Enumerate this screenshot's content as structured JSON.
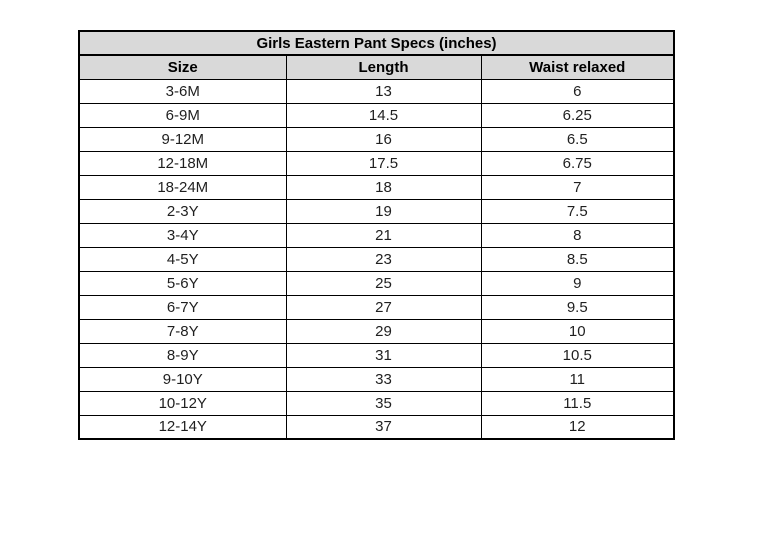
{
  "table": {
    "title": "Girls Eastern Pant Specs (inches)",
    "columns": [
      "Size",
      "Length",
      "Waist relaxed"
    ],
    "rows": [
      [
        "3-6M",
        "13",
        "6"
      ],
      [
        "6-9M",
        "14.5",
        "6.25"
      ],
      [
        "9-12M",
        "16",
        "6.5"
      ],
      [
        "12-18M",
        "17.5",
        "6.75"
      ],
      [
        "18-24M",
        "18",
        "7"
      ],
      [
        "2-3Y",
        "19",
        "7.5"
      ],
      [
        "3-4Y",
        "21",
        "8"
      ],
      [
        "4-5Y",
        "23",
        "8.5"
      ],
      [
        "5-6Y",
        "25",
        "9"
      ],
      [
        "6-7Y",
        "27",
        "9.5"
      ],
      [
        "7-8Y",
        "29",
        "10"
      ],
      [
        "8-9Y",
        "31",
        "10.5"
      ],
      [
        "9-10Y",
        "33",
        "11"
      ],
      [
        "10-12Y",
        "35",
        "11.5"
      ],
      [
        "12-14Y",
        "37",
        "12"
      ]
    ],
    "colors": {
      "header_bg": "#d9d9d9",
      "border": "#000000",
      "text": "#1f1f1f",
      "page_bg": "#ffffff"
    }
  },
  "chart_data": {
    "type": "table",
    "title": "Girls Eastern Pant Specs (inches)",
    "columns": [
      "Size",
      "Length",
      "Waist relaxed"
    ],
    "categories": [
      "3-6M",
      "6-9M",
      "9-12M",
      "12-18M",
      "18-24M",
      "2-3Y",
      "3-4Y",
      "4-5Y",
      "5-6Y",
      "6-7Y",
      "7-8Y",
      "8-9Y",
      "9-10Y",
      "10-12Y",
      "12-14Y"
    ],
    "series": [
      {
        "name": "Length",
        "values": [
          13,
          14.5,
          16,
          17.5,
          18,
          19,
          21,
          23,
          25,
          27,
          29,
          31,
          33,
          35,
          37
        ]
      },
      {
        "name": "Waist relaxed",
        "values": [
          6,
          6.25,
          6.5,
          6.75,
          7,
          7.5,
          8,
          8.5,
          9,
          9.5,
          10,
          10.5,
          11,
          11.5,
          12
        ]
      }
    ]
  }
}
